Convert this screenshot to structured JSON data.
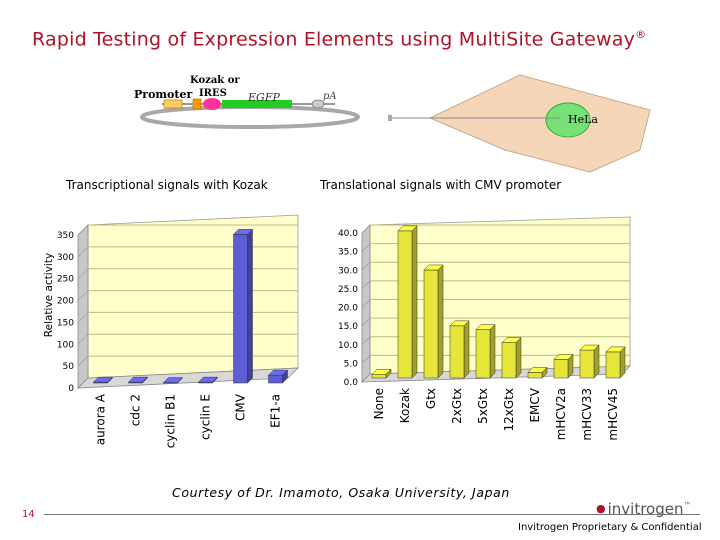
{
  "slide": {
    "title": "Rapid Testing of Expression Elements using MultiSite Gateway",
    "title_mark": "®",
    "courtesy": "Courtesy of Dr. Imamoto, Osaka University, Japan",
    "page_number": "14",
    "brand": "invitrogen",
    "brand_mark": "™",
    "confidential": "Invitrogen Proprietary & Confidential"
  },
  "diagram": {
    "promoter": "Promoter",
    "kozak_or": "Kozak or",
    "ires": "IRES",
    "egfp": "EGFP",
    "pa": "pA",
    "cell_label": "HeLa"
  },
  "colors": {
    "title": "#b0122a",
    "chart_bg": "#ffffcc",
    "wall": "#c8c8c8",
    "left_bars": "#5d5dd6",
    "right_bars": "#e6e63a",
    "gfp": "#33cc33",
    "cell": "#f5d6b8"
  },
  "chart_data": [
    {
      "type": "bar",
      "title": "Transcriptional signals with Kozak",
      "xlabel": "",
      "ylabel": "Relative activity",
      "categories": [
        "aurora A",
        "cdc 2",
        "cyclin B1",
        "cyclin E",
        "CMV",
        "EF1-a"
      ],
      "values": [
        2,
        2,
        1,
        2,
        340,
        18
      ],
      "ylim": [
        0,
        350
      ],
      "yticks": [
        "0",
        "50",
        "100",
        "150",
        "200",
        "250",
        "300",
        "350"
      ],
      "grid": true
    },
    {
      "type": "bar",
      "title": "Translational signals with CMV promoter",
      "xlabel": "",
      "ylabel": "",
      "categories": [
        "None",
        "Kozak",
        "Gtx",
        "2xGtx",
        "5xGtx",
        "12xGtx",
        "EMCV",
        "mHCV2a",
        "mHCV33",
        "mHCV45"
      ],
      "values": [
        1.0,
        39.5,
        29.0,
        14.0,
        13.0,
        9.5,
        1.5,
        5.0,
        7.5,
        7.0
      ],
      "ylim": [
        0,
        40
      ],
      "yticks": [
        "0.0",
        "5.0",
        "10.0",
        "15.0",
        "20.0",
        "25.0",
        "30.0",
        "35.0",
        "40.0"
      ],
      "grid": true
    }
  ]
}
